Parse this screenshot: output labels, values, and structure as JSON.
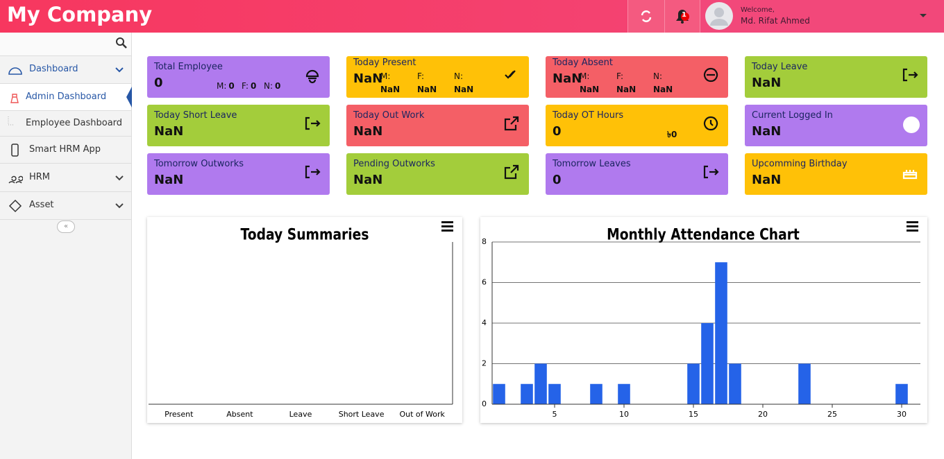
{
  "header": {
    "brand": "My Company",
    "badge": "1",
    "welcome": "Welcome,",
    "user": "Md. Rifat Ahmed"
  },
  "sidebar": {
    "items": [
      {
        "label": "Dashboard"
      },
      {
        "label": "Admin Dashboard"
      },
      {
        "label": "Employee Dashboard"
      },
      {
        "label": "Smart HRM App"
      },
      {
        "label": "HRM"
      },
      {
        "label": "Asset"
      }
    ]
  },
  "cards": [
    {
      "title": "Total Employee",
      "value": "0",
      "color": "#b07aee",
      "subs": [
        {
          "label": "M:",
          "value": "0"
        },
        {
          "label": "F:",
          "value": "0"
        },
        {
          "label": "N:",
          "value": "0"
        }
      ]
    },
    {
      "title": "Today Present",
      "value": "NaN",
      "color": "#ffc107",
      "subs": [
        {
          "label": "M:",
          "value": "NaN"
        },
        {
          "label": "F:",
          "value": "NaN"
        },
        {
          "label": "N:",
          "value": "NaN"
        }
      ]
    },
    {
      "title": "Today Absent",
      "value": "NaN",
      "color": "#f45f66",
      "subs": [
        {
          "label": "M:",
          "value": "NaN"
        },
        {
          "label": "F:",
          "value": "NaN"
        },
        {
          "label": "N:",
          "value": "NaN"
        }
      ]
    },
    {
      "title": "Today Leave",
      "value": "NaN",
      "color": "#a3cd3b"
    },
    {
      "title": "Today Short Leave",
      "value": "NaN",
      "color": "#a3cd3b"
    },
    {
      "title": "Today Out Work",
      "value": "NaN",
      "color": "#f45f66"
    },
    {
      "title": "Today OT Hours",
      "value": "0",
      "color": "#ffc107",
      "extra": "৳0"
    },
    {
      "title": "Current Logged In",
      "value": "NaN",
      "color": "#b07aee"
    },
    {
      "title": "Tomorrow Outworks",
      "value": "NaN",
      "color": "#b07aee"
    },
    {
      "title": "Pending Outworks",
      "value": "NaN",
      "color": "#a3cd3b"
    },
    {
      "title": "Tomorrow Leaves",
      "value": "0",
      "color": "#b07aee"
    },
    {
      "title": "Upcomming Birthday",
      "value": "NaN",
      "color": "#ffc107"
    }
  ],
  "chart_data": [
    {
      "type": "bar",
      "title": "Today Summaries",
      "categories": [
        "Present",
        "Absent",
        "Leave",
        "Short Leave",
        "Out of Work"
      ]
    },
    {
      "type": "bar",
      "title": "Monthly Attendance Chart",
      "x": [
        1,
        3,
        4,
        5,
        8,
        10,
        15,
        16,
        17,
        18,
        23,
        30
      ],
      "values": [
        1,
        1,
        2,
        1,
        1,
        1,
        2,
        4,
        7,
        2,
        2,
        1
      ],
      "color": "#2563e8",
      "xlim": [
        0.5,
        31.5
      ],
      "xticks": [
        5,
        10,
        15,
        20,
        25,
        30
      ],
      "ylim": [
        0,
        8
      ],
      "yticks": [
        0,
        2,
        4,
        6,
        8
      ],
      "grid": true
    }
  ]
}
